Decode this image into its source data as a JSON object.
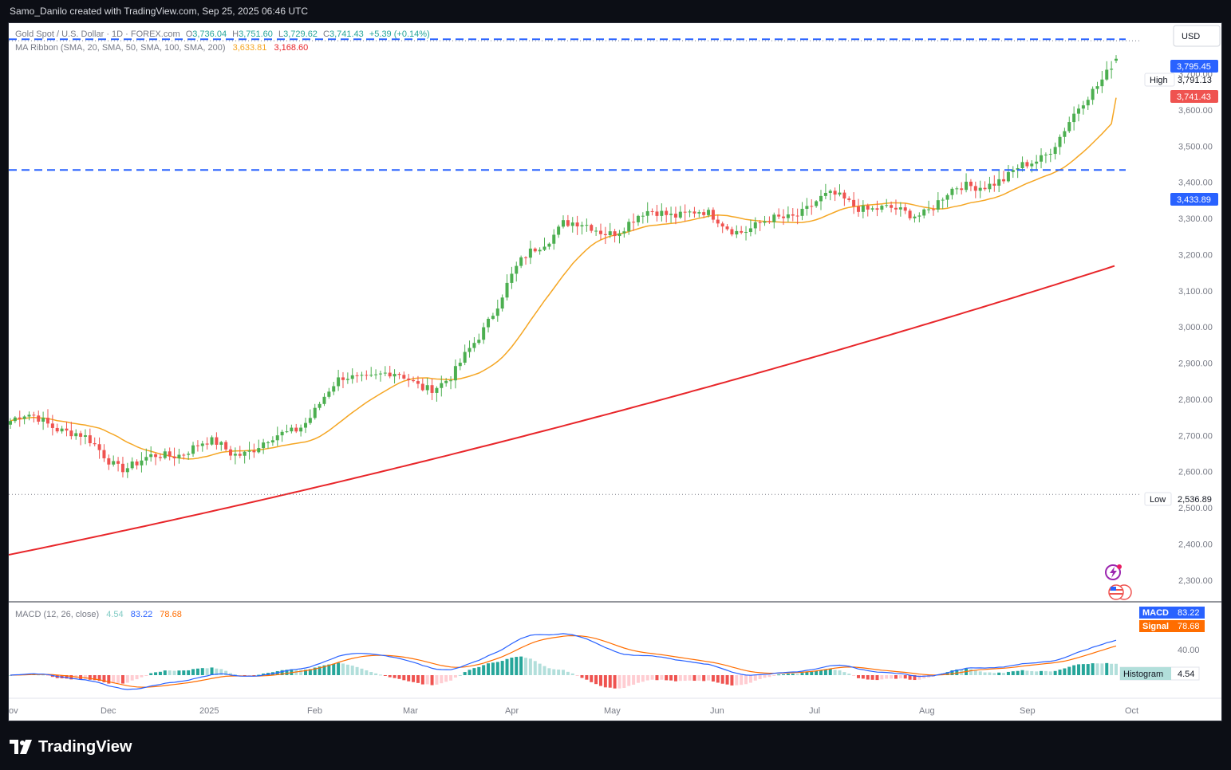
{
  "header": {
    "attribution": "Samo_Danilo created with TradingView.com, Sep 25, 2025 06:46 UTC"
  },
  "legend": {
    "symbol": "Gold Spot / U.S. Dollar · 1D · FOREX.com",
    "open_label": "O",
    "open": "3,736.04",
    "high_label": "H",
    "high": "3,751.60",
    "low_label": "L",
    "low": "3,729.62",
    "close_label": "C",
    "close": "3,741.43",
    "change": "+5.39 (+0.14%)",
    "ma_label": "MA Ribbon (SMA, 20, SMA, 50, SMA, 100, SMA, 200)",
    "ma_value_1": "3,633.81",
    "ma_value_2": "3,168.60"
  },
  "currency": "USD",
  "price_axis": {
    "ticks": [
      "3,700.00",
      "3,600.00",
      "3,500.00",
      "3,400.00",
      "3,300.00",
      "3,200.00",
      "3,100.00",
      "3,000.00",
      "2,900.00",
      "2,800.00",
      "2,700.00",
      "2,600.00",
      "2,500.00",
      "2,400.00",
      "2,300.00"
    ],
    "tag_upper": "3,795.45",
    "high_label": "High",
    "high_value": "3,791.13",
    "tag_last": "3,741.43",
    "tag_lower": "3,433.89",
    "low_label": "Low",
    "low_value": "2,536.89"
  },
  "macd": {
    "title": "MACD (12, 26, close)",
    "hist_value": "4.54",
    "macd_value": "83.22",
    "signal_value": "78.68",
    "tag_macd_label": "MACD",
    "tag_macd_value": "83.22",
    "tag_signal_label": "Signal",
    "tag_signal_value": "78.68",
    "axis_tick": "40.00",
    "tag_hist_label": "Histogram",
    "tag_hist_value": "4.54"
  },
  "time_axis": [
    "ov",
    "Dec",
    "2025",
    "Feb",
    "Mar",
    "Apr",
    "May",
    "Jun",
    "Jul",
    "Aug",
    "Sep",
    "Oct"
  ],
  "footer": {
    "brand": "TradingView"
  },
  "colors": {
    "up": "#26a69a",
    "up_candle": "#4caf50",
    "down": "#ef5350",
    "ma20": "#f5a623",
    "ma200": "#e8262a",
    "level": "#2962ff",
    "macd": "#2962ff",
    "signal": "#ff6d00"
  },
  "chart_data": {
    "type": "candlestick",
    "price_range": [
      2240,
      3840
    ],
    "levels": [
      3795.45,
      3433.89
    ],
    "high": 3791.13,
    "low": 2536.89,
    "last": 3741.43,
    "months": [
      "Nov",
      "Dec",
      "Jan",
      "Feb",
      "Mar",
      "Apr",
      "May",
      "Jun",
      "Jul",
      "Aug",
      "Sep"
    ],
    "monthly_close_path": [
      2740,
      2650,
      2640,
      2830,
      2880,
      3300,
      3290,
      3310,
      3340,
      3380,
      3741
    ],
    "ma20_end": 3633.81,
    "ma200_start": 2370,
    "ma200_end": 3168.6,
    "macd": {
      "macd_last": 83.22,
      "signal_last": 78.68,
      "hist_last": 4.54
    }
  }
}
